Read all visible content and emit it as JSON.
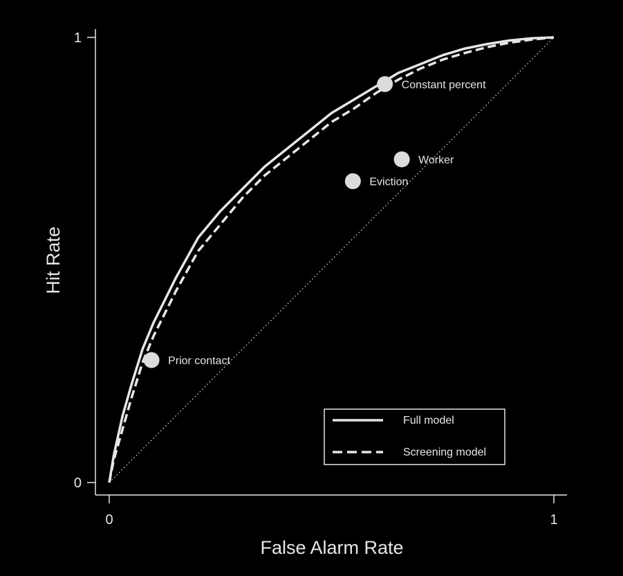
{
  "chart_data": {
    "type": "line",
    "xlabel": "False Alarm Rate",
    "ylabel": "Hit Rate",
    "xlim": [
      0,
      1
    ],
    "ylim": [
      0,
      1
    ],
    "x_ticks": [
      "0",
      "1"
    ],
    "y_ticks": [
      "0",
      "1"
    ],
    "grid": false,
    "legend_position": "bottom-right",
    "series": [
      {
        "name": "Full model",
        "style": "solid",
        "color": "#e6e6e6",
        "x": [
          0,
          0.01,
          0.03,
          0.05,
          0.075,
          0.1,
          0.125,
          0.15,
          0.2,
          0.25,
          0.3,
          0.35,
          0.4,
          0.45,
          0.5,
          0.55,
          0.6,
          0.65,
          0.7,
          0.75,
          0.8,
          0.85,
          0.9,
          0.95,
          1
        ],
        "y": [
          0,
          0.06,
          0.15,
          0.22,
          0.3,
          0.36,
          0.41,
          0.46,
          0.55,
          0.61,
          0.66,
          0.71,
          0.75,
          0.79,
          0.83,
          0.86,
          0.89,
          0.92,
          0.94,
          0.96,
          0.975,
          0.985,
          0.993,
          0.998,
          1
        ]
      },
      {
        "name": "Screening model",
        "style": "dashed",
        "color": "#e6e6e6",
        "x": [
          0,
          0.01,
          0.03,
          0.05,
          0.075,
          0.1,
          0.125,
          0.15,
          0.2,
          0.25,
          0.3,
          0.35,
          0.4,
          0.45,
          0.5,
          0.55,
          0.6,
          0.65,
          0.7,
          0.75,
          0.8,
          0.85,
          0.9,
          0.95,
          1
        ],
        "y": [
          0,
          0.05,
          0.12,
          0.19,
          0.27,
          0.33,
          0.38,
          0.43,
          0.52,
          0.58,
          0.64,
          0.69,
          0.73,
          0.77,
          0.81,
          0.84,
          0.875,
          0.905,
          0.93,
          0.95,
          0.965,
          0.978,
          0.988,
          0.995,
          1
        ]
      }
    ],
    "reference_line": {
      "x": [
        0,
        1
      ],
      "y": [
        0,
        1
      ],
      "style": "dotted"
    },
    "points": [
      {
        "label": "Prior contact",
        "x": 0.095,
        "y": 0.275
      },
      {
        "label": "Constant percent",
        "x": 0.62,
        "y": 0.895
      },
      {
        "label": "Worker",
        "x": 0.658,
        "y": 0.726
      },
      {
        "label": "Eviction",
        "x": 0.548,
        "y": 0.677
      }
    ]
  }
}
